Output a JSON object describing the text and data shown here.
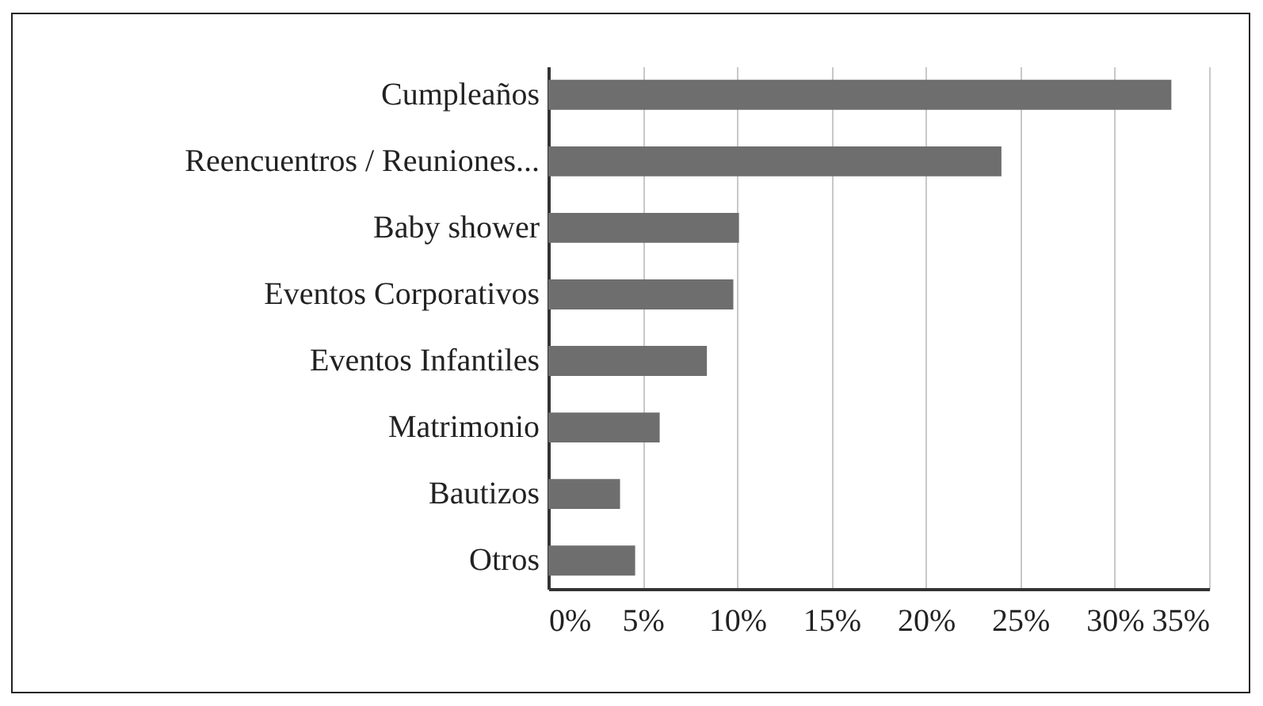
{
  "chart_data": {
    "type": "bar",
    "orientation": "horizontal",
    "categories": [
      "Cumpleaños",
      "Reencuentros / Reuniones...",
      "Baby shower",
      "Eventos Corporativos",
      "Eventos Infantiles",
      "Matrimonio",
      "Bautizos",
      "Otros"
    ],
    "values": [
      33,
      24,
      10.1,
      9.8,
      8.4,
      5.9,
      3.8,
      4.6
    ],
    "color": "#6e6e6e",
    "xlim": [
      0,
      35
    ],
    "xticks": [
      {
        "value": 0,
        "label": "0%"
      },
      {
        "value": 5,
        "label": "5%"
      },
      {
        "value": 10,
        "label": "10%"
      },
      {
        "value": 15,
        "label": "15%"
      },
      {
        "value": 20,
        "label": "20%"
      },
      {
        "value": 25,
        "label": "25%"
      },
      {
        "value": 30,
        "label": "30%"
      },
      {
        "value": 35,
        "label": "35%"
      }
    ],
    "grid": true
  }
}
